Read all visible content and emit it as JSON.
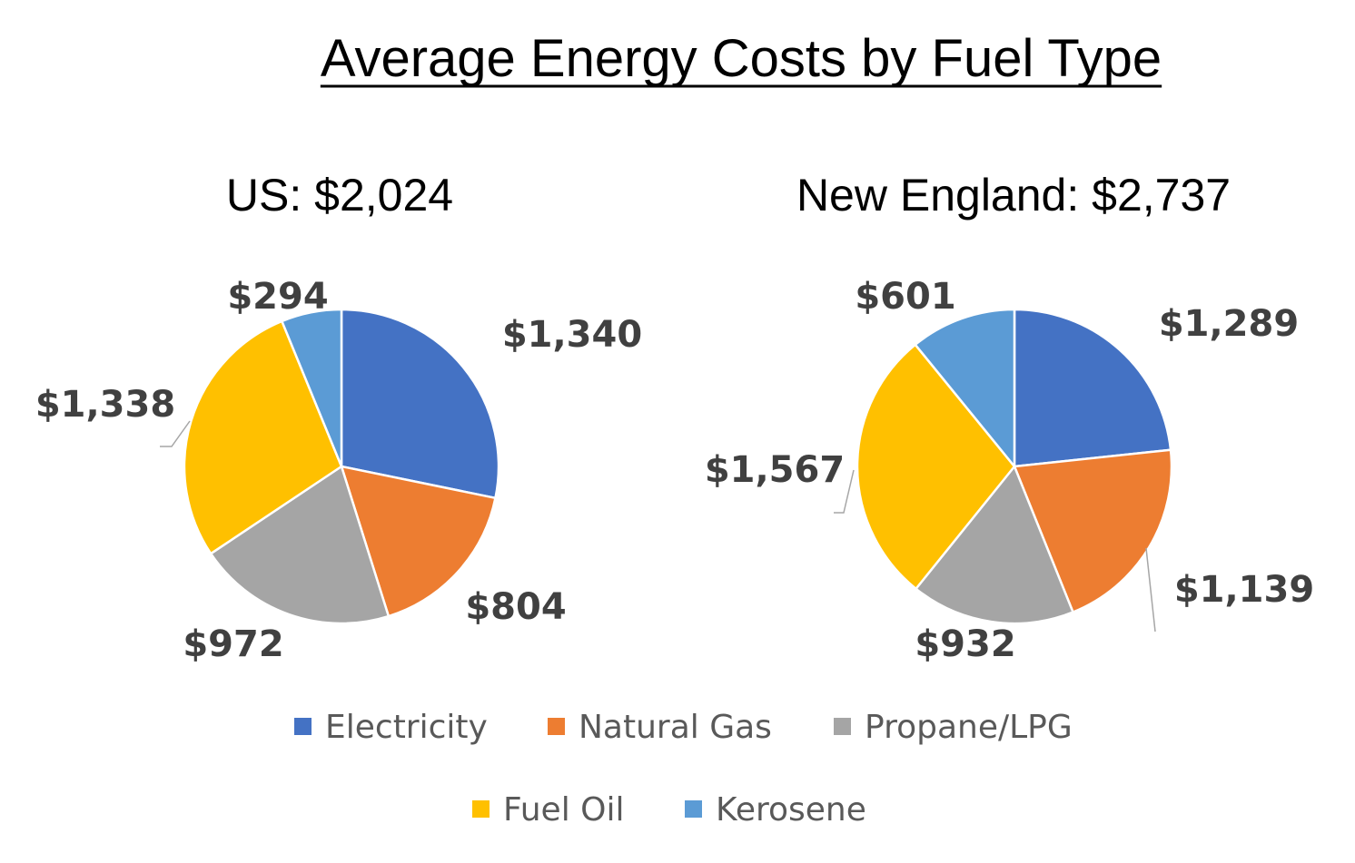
{
  "chart_data": {
    "title": "Average Energy Costs by Fuel Type",
    "categories": [
      "Electricity",
      "Natural Gas",
      "Propane/LPG",
      "Fuel Oil",
      "Kerosene"
    ],
    "colors": {
      "Electricity": "#4472C4",
      "Natural Gas": "#ED7D31",
      "Propane/LPG": "#A5A5A5",
      "Fuel Oil": "#FFC000",
      "Kerosene": "#5B9BD5"
    },
    "legend_position": "bottom",
    "charts": [
      {
        "type": "pie",
        "title": "US:  $2,024",
        "values": [
          1340,
          804,
          972,
          1338,
          294
        ],
        "labels": [
          "$1,340",
          "$804",
          "$972",
          "$1,338",
          "$294"
        ]
      },
      {
        "type": "pie",
        "title": "New England:  $2,737",
        "values": [
          1289,
          1139,
          932,
          1567,
          601
        ],
        "labels": [
          "$1,289",
          "$1,139",
          "$932",
          "$1,567",
          "$601"
        ]
      }
    ]
  }
}
